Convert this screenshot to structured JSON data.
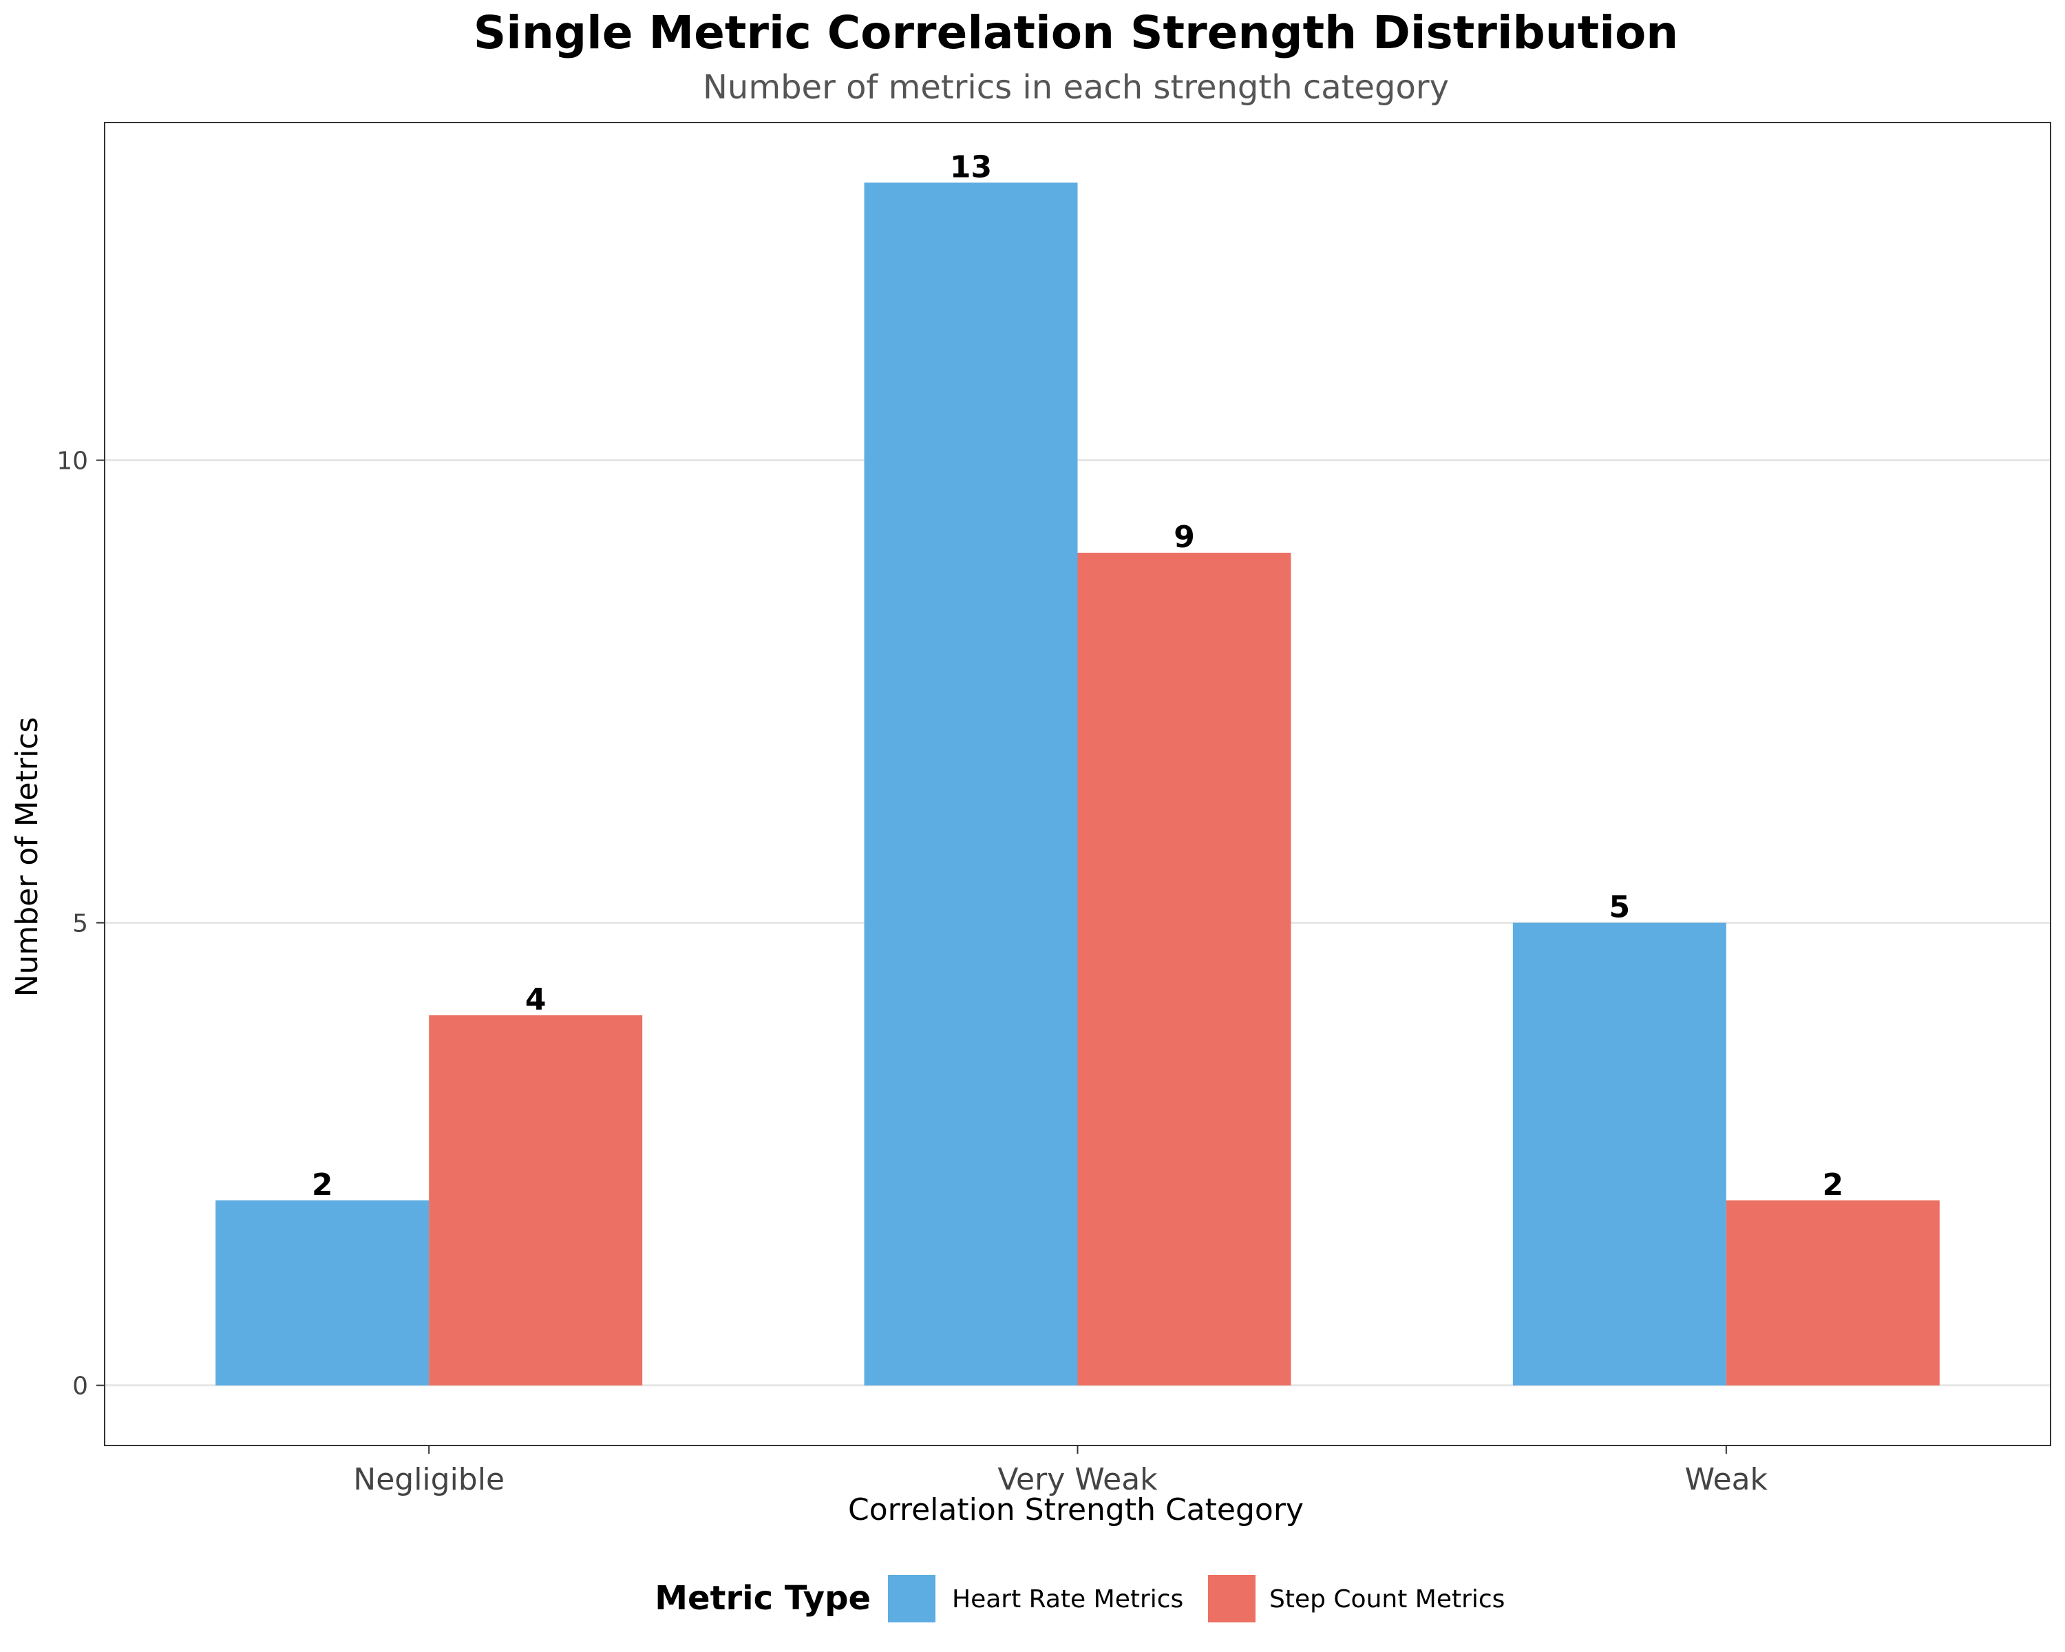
{
  "chart_data": {
    "type": "bar",
    "title": "Single Metric Correlation Strength Distribution",
    "subtitle": "Number of metrics in each strength category",
    "xlabel": "Correlation Strength Category",
    "ylabel": "Number of Metrics",
    "categories": [
      "Negligible",
      "Very Weak",
      "Weak"
    ],
    "series": [
      {
        "name": "Heart Rate Metrics",
        "values": [
          2,
          13,
          5
        ],
        "color": "#5DADE2"
      },
      {
        "name": "Step Count Metrics",
        "values": [
          4,
          9,
          2
        ],
        "color": "#EC7063"
      }
    ],
    "ylim": [
      -0.65,
      13.65
    ],
    "yticks": [
      0,
      5,
      10
    ],
    "grid": "horizontal",
    "legend": {
      "title": "Metric Type",
      "position": "bottom"
    }
  }
}
